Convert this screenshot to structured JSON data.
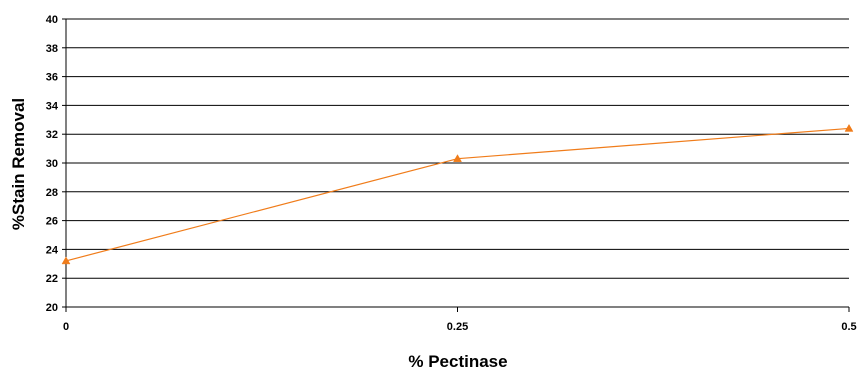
{
  "chart_data": {
    "type": "line",
    "title": "",
    "xlabel": "% Pectinase",
    "ylabel": "%Stain Removal",
    "x": [
      0,
      0.25,
      0.5
    ],
    "x_tick_labels": [
      "0",
      "0.25",
      "0.5"
    ],
    "series": [
      {
        "values": [
          23.2,
          30.3,
          32.4
        ],
        "color": "#f07c1a",
        "marker": "triangle"
      }
    ],
    "xlim": [
      0,
      0.5
    ],
    "ylim": [
      20,
      40
    ],
    "y_ticks": [
      20,
      22,
      24,
      26,
      28,
      30,
      32,
      34,
      36,
      38,
      40
    ],
    "grid": {
      "horizontal": true,
      "vertical": false
    },
    "legend": "none"
  }
}
